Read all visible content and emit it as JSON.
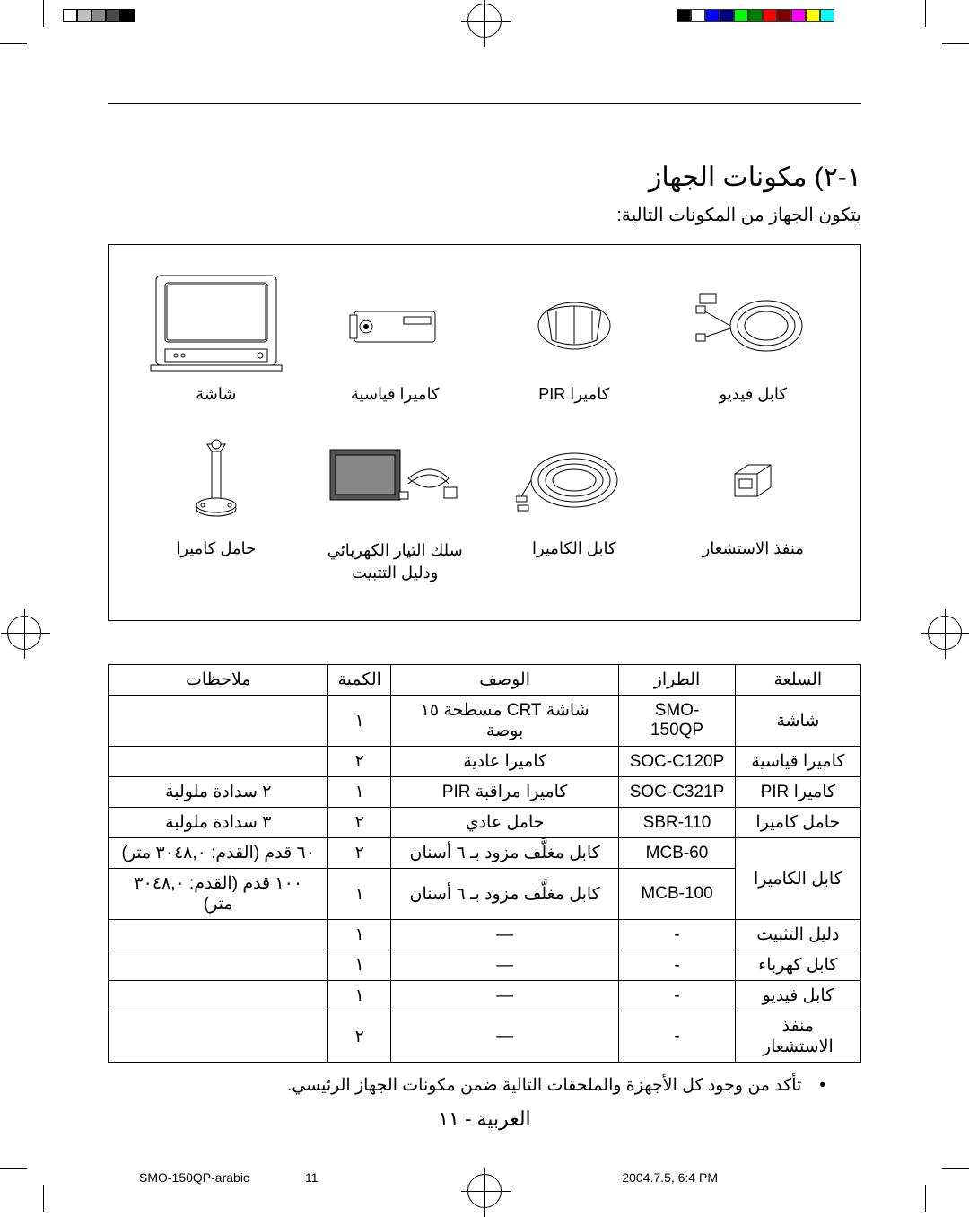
{
  "section": {
    "title": "١-٢) مكونات الجهاز",
    "subtitle": "يتكون الجهاز من المكونات التالية:"
  },
  "components": {
    "row1": [
      {
        "label": "شاشة"
      },
      {
        "label": "كاميرا قياسية"
      },
      {
        "label": "كاميرا PIR"
      },
      {
        "label": "كابل فيديو"
      }
    ],
    "row2": [
      {
        "label": "حامل كاميرا"
      },
      {
        "label": "سلك التيار الكهربائي\nودليل التثبيت"
      },
      {
        "label": "كابل الكاميرا"
      },
      {
        "label": "منفذ الاستشعار"
      }
    ]
  },
  "table": {
    "headers": {
      "item": "السلعة",
      "model": "الطراز",
      "desc": "الوصف",
      "qty": "الكمية",
      "notes": "ملاحظات"
    },
    "rows": [
      {
        "item": "شاشة",
        "model": "SMO-150QP",
        "desc": "شاشة CRT مسطحة ١٥ بوصة",
        "qty": "١",
        "notes": "",
        "rowspan": 1
      },
      {
        "item": "كاميرا قياسية",
        "model": "SOC-C120P",
        "desc": "كاميرا عادية",
        "qty": "٢",
        "notes": "",
        "rowspan": 1
      },
      {
        "item": "كاميرا PIR",
        "model": "SOC-C321P",
        "desc": "كاميرا مراقبة PIR",
        "qty": "١",
        "notes": "٢ سدادة ملولبة",
        "rowspan": 1
      },
      {
        "item": "حامل كاميرا",
        "model": "SBR-110",
        "desc": "حامل عادي",
        "qty": "٢",
        "notes": "٣ سدادة ملولبة",
        "rowspan": 1
      },
      {
        "item": "كابل الكاميرا",
        "model": "MCB-60",
        "desc": "كابل مغلَّف مزود بـ ٦ أسنان",
        "qty": "٢",
        "notes": "٦٠ قدم (القدم: ٣٠٤٨,٠ متر)",
        "rowspan": 2
      },
      {
        "item": "",
        "model": "MCB-100",
        "desc": "كابل مغلَّف مزود بـ ٦ أسنان",
        "qty": "١",
        "notes": "١٠٠ قدم (القدم: ٣٠٤٨,٠ متر)",
        "rowspan": 0
      },
      {
        "item": "دليل التثبيت",
        "model": "-",
        "desc": "—",
        "qty": "١",
        "notes": "",
        "rowspan": 1
      },
      {
        "item": "كابل كهرباء",
        "model": "-",
        "desc": "—",
        "qty": "١",
        "notes": "",
        "rowspan": 1
      },
      {
        "item": "كابل فيديو",
        "model": "-",
        "desc": "—",
        "qty": "١",
        "notes": "",
        "rowspan": 1
      },
      {
        "item": "منفذ الاستشعار",
        "model": "-",
        "desc": "—",
        "qty": "٢",
        "notes": "",
        "rowspan": 1
      }
    ]
  },
  "note": "تأكد من وجود كل الأجهزة والملحقات التالية ضمن مكونات الجهاز الرئيسي.",
  "page_number": "العربية - ١١",
  "footer": {
    "left": "SMO-150QP-arabic",
    "mid": "11",
    "right": "2004.7.5, 6:4 PM"
  },
  "colors": {
    "print_bar_left": [
      "#000",
      "#4a4a4a",
      "#888",
      "#c0c0c0",
      "#fff"
    ],
    "print_bar_right": [
      "#0ff",
      "#ff0",
      "#f0f",
      "#800000",
      "#f00",
      "#008000",
      "#0f0",
      "#000080",
      "#00f",
      "#fff",
      "#000"
    ]
  }
}
